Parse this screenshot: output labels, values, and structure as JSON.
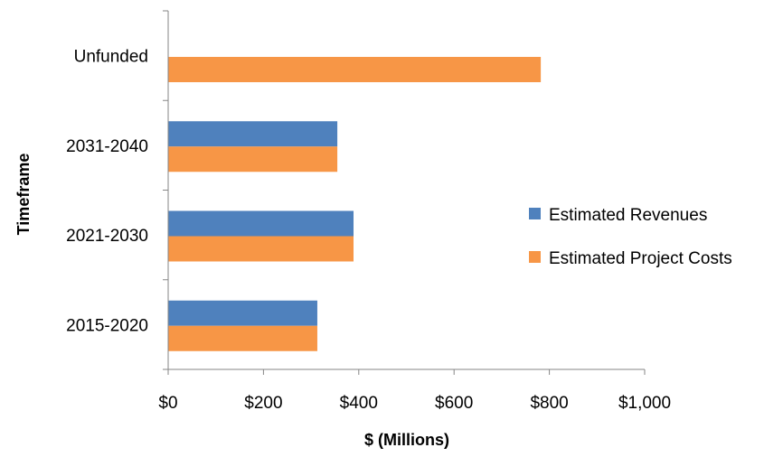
{
  "chart_data": {
    "type": "bar",
    "orientation": "horizontal",
    "categories": [
      "2015-2020",
      "2021-2030",
      "2031-2040",
      "Unfunded"
    ],
    "series": [
      {
        "name": "Estimated Revenues",
        "color": "#4F81BD",
        "values": [
          313,
          389,
          355,
          null
        ]
      },
      {
        "name": "Estimated Project Costs",
        "color": "#F79646",
        "values": [
          313,
          389,
          355,
          782
        ]
      }
    ],
    "xlabel": "$ (Millions)",
    "ylabel": "Timeframe",
    "xlim": [
      0,
      1000
    ],
    "xticks": [
      0,
      200,
      400,
      600,
      800,
      1000
    ],
    "xtick_labels": [
      "$0",
      "$200",
      "$400",
      "$600",
      "$800",
      "$1,000"
    ],
    "legend_position": "right",
    "grid": false
  }
}
